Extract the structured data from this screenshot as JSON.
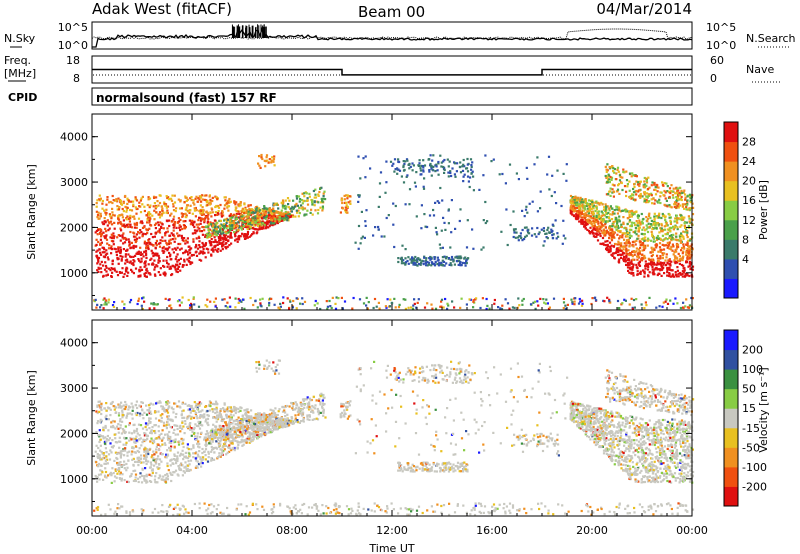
{
  "header": {
    "station": "Adak West (fitACF)",
    "beam": "Beam 00",
    "date": "04/Mar/2014"
  },
  "top_panels": {
    "left_labels": [
      "N.Sky",
      "Freq.",
      "[MHz]",
      "CPID"
    ],
    "right_labels": [
      "N.Search",
      "Nave"
    ],
    "sky_ticks": [
      "10^5",
      "10^0"
    ],
    "search_ticks": [
      "10^5",
      "10^0"
    ],
    "freq_ticks": [
      "18",
      "8"
    ],
    "nave_ticks": [
      "60",
      "0"
    ],
    "cpid_text": "normalsound (fast) 157 RF",
    "freq_steps": [
      {
        "x_hours": 0,
        "freq": 13
      },
      {
        "x_hours": 10,
        "freq": 11
      },
      {
        "x_hours": 18,
        "freq": 13
      },
      {
        "x_hours": 24,
        "freq": 13
      }
    ]
  },
  "colors": {
    "power": [
      "#1a1aff",
      "#2f4fb0",
      "#3a7a6a",
      "#4aa04a",
      "#88cc44",
      "#e8c020",
      "#f09020",
      "#f05010",
      "#e01010"
    ],
    "velocity": [
      "#e01010",
      "#f05010",
      "#f09020",
      "#e8c020",
      "#c8c8c0",
      "#88cc44",
      "#3a9040",
      "#3050a0",
      "#1a1aff"
    ]
  },
  "chart_data": [
    {
      "type": "heatmap",
      "title": "Power",
      "ylabel": "Slant Range [km]",
      "xlabel": "Time UT",
      "ylim": [
        180,
        4500
      ],
      "xlim_hours": [
        0,
        24
      ],
      "yticks": [
        "4000",
        "3000",
        "2000",
        "1000"
      ],
      "xticks": [
        "00:00",
        "04:00",
        "08:00",
        "12:00",
        "16:00",
        "20:00",
        "00:00"
      ],
      "colorbar": {
        "label": "Power [dB]",
        "ticks": [
          "28",
          "24",
          "20",
          "16",
          "12",
          "8",
          "4"
        ]
      }
    },
    {
      "type": "heatmap",
      "title": "Velocity",
      "ylabel": "Slant Range [km]",
      "xlabel": "Time UT",
      "ylim": [
        180,
        4500
      ],
      "xlim_hours": [
        0,
        24
      ],
      "yticks": [
        "4000",
        "3000",
        "2000",
        "1000"
      ],
      "xticks": [
        "00:00",
        "04:00",
        "08:00",
        "12:00",
        "16:00",
        "20:00",
        "00:00"
      ],
      "colorbar": {
        "label": "Velocity [m s⁻¹]",
        "ticks": [
          "200",
          "100",
          "50",
          "15",
          "-15",
          "-50",
          "-100",
          "-200"
        ]
      }
    }
  ]
}
